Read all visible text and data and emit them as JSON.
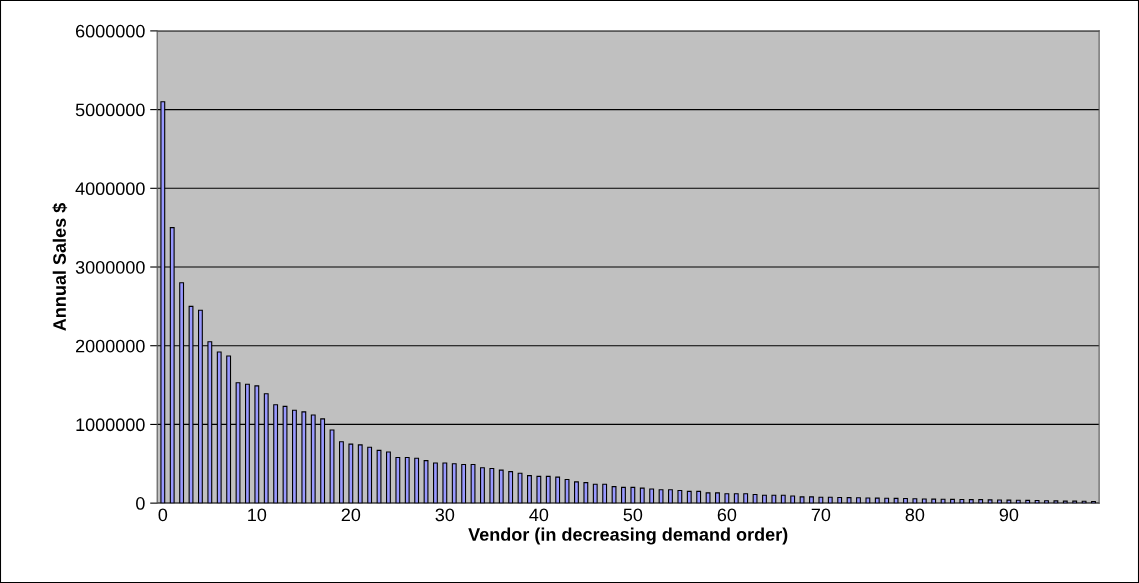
{
  "chart_data": {
    "type": "bar",
    "xlabel": "Vendor (in decreasing demand order)",
    "ylabel": "Annual Sales $",
    "categories": [
      "0",
      null,
      null,
      null,
      null,
      null,
      null,
      null,
      null,
      null,
      "10",
      null,
      null,
      null,
      null,
      null,
      null,
      null,
      null,
      null,
      "20",
      null,
      null,
      null,
      null,
      null,
      null,
      null,
      null,
      null,
      "30",
      null,
      null,
      null,
      null,
      null,
      null,
      null,
      null,
      null,
      "40",
      null,
      null,
      null,
      null,
      null,
      null,
      null,
      null,
      null,
      "50",
      null,
      null,
      null,
      null,
      null,
      null,
      null,
      null,
      null,
      "60",
      null,
      null,
      null,
      null,
      null,
      null,
      null,
      null,
      null,
      "70",
      null,
      null,
      null,
      null,
      null,
      null,
      null,
      null,
      null,
      "80",
      null,
      null,
      null,
      null,
      null,
      null,
      null,
      null,
      null,
      "90",
      null,
      null,
      null,
      null,
      null,
      null,
      null,
      null,
      null
    ],
    "values": [
      5100000,
      3500000,
      2800000,
      2500000,
      2450000,
      2050000,
      1920000,
      1870000,
      1530000,
      1510000,
      1490000,
      1390000,
      1250000,
      1230000,
      1180000,
      1160000,
      1120000,
      1070000,
      930000,
      780000,
      750000,
      740000,
      710000,
      670000,
      650000,
      580000,
      580000,
      570000,
      540000,
      510000,
      510000,
      500000,
      490000,
      490000,
      450000,
      440000,
      420000,
      400000,
      380000,
      350000,
      340000,
      340000,
      330000,
      300000,
      270000,
      260000,
      240000,
      240000,
      210000,
      200000,
      200000,
      190000,
      180000,
      170000,
      170000,
      160000,
      150000,
      150000,
      130000,
      130000,
      120000,
      120000,
      120000,
      110000,
      100000,
      100000,
      100000,
      90000,
      80000,
      80000,
      75000,
      75000,
      72000,
      70000,
      68000,
      66000,
      64000,
      62000,
      60000,
      58000,
      55000,
      53000,
      51000,
      50000,
      48000,
      46000,
      45000,
      44000,
      42000,
      40000,
      38000,
      37000,
      35000,
      33000,
      30000,
      28000,
      26000,
      25000,
      23000,
      20000
    ],
    "color": "#9999ff",
    "ylim": [
      0,
      6000000
    ],
    "yticks": [
      0,
      1000000,
      2000000,
      3000000,
      4000000,
      5000000,
      6000000
    ],
    "grid": "y",
    "legend": false
  }
}
